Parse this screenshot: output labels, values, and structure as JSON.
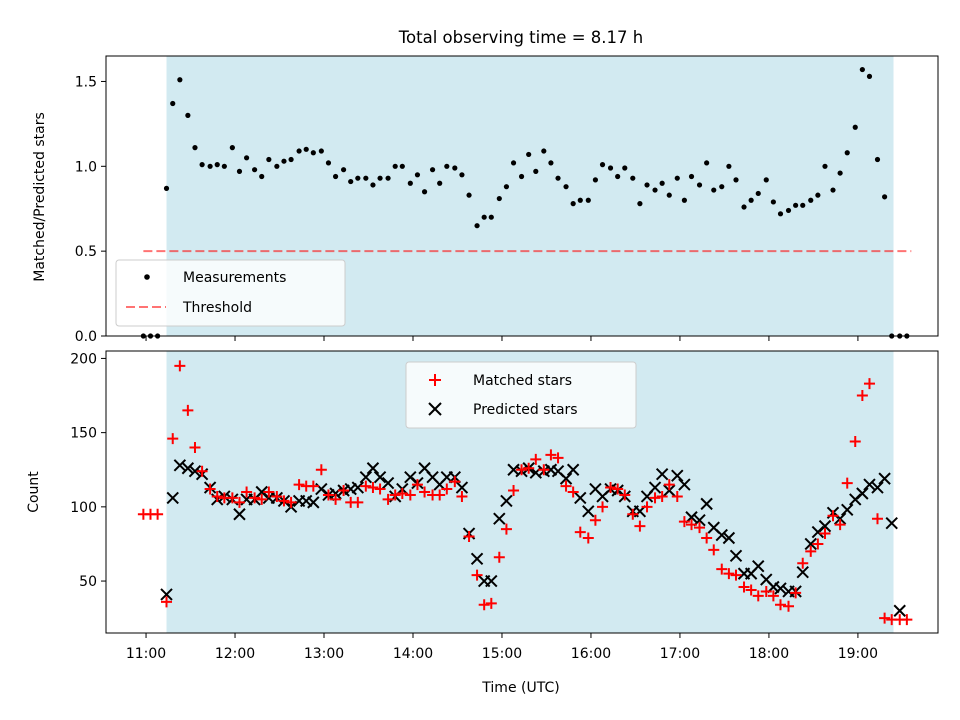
{
  "title": "Total observing time = 8.17 h",
  "x_axis": {
    "label": "Time (UTC)",
    "ticks": [
      "11:00",
      "12:00",
      "13:00",
      "14:00",
      "15:00",
      "16:00",
      "17:00",
      "18:00",
      "19:00"
    ],
    "tick_hours": [
      11,
      12,
      13,
      14,
      15,
      16,
      17,
      18,
      19
    ],
    "range_hours": [
      10.55,
      19.9
    ]
  },
  "observing_window_hours": [
    11.23,
    19.4
  ],
  "colors": {
    "window": "#add8e6",
    "measurements": "#000000",
    "threshold": "#ff0000",
    "matched": "#ff0000",
    "predicted": "#000000"
  },
  "chart_data": [
    {
      "type": "scatter",
      "ylabel": "Matched/Predicted stars",
      "ylim": [
        0,
        1.65
      ],
      "yticks": [
        0.0,
        0.5,
        1.0,
        1.5
      ],
      "yticklabels": [
        "0.0",
        "0.5",
        "1.0",
        "1.5"
      ],
      "legend_position": "lower-left",
      "legend": {
        "measurements": "Measurements",
        "threshold": "Threshold"
      },
      "threshold": {
        "value": 0.5,
        "x_range_hours": [
          10.97,
          19.6
        ]
      },
      "measurements": {
        "x": [
          10.97,
          11.05,
          11.13,
          11.23,
          11.3,
          11.38,
          11.47,
          11.55,
          11.63,
          11.72,
          11.8,
          11.88,
          11.97,
          12.05,
          12.13,
          12.22,
          12.3,
          12.38,
          12.47,
          12.55,
          12.63,
          12.72,
          12.8,
          12.88,
          12.97,
          13.05,
          13.13,
          13.22,
          13.3,
          13.38,
          13.47,
          13.55,
          13.63,
          13.72,
          13.8,
          13.88,
          13.97,
          14.05,
          14.13,
          14.22,
          14.3,
          14.38,
          14.47,
          14.55,
          14.63,
          14.72,
          14.8,
          14.88,
          14.97,
          15.05,
          15.13,
          15.22,
          15.3,
          15.38,
          15.47,
          15.55,
          15.63,
          15.72,
          15.8,
          15.88,
          15.97,
          16.05,
          16.13,
          16.22,
          16.3,
          16.38,
          16.47,
          16.55,
          16.63,
          16.72,
          16.8,
          16.88,
          16.97,
          17.05,
          17.13,
          17.22,
          17.3,
          17.38,
          17.47,
          17.55,
          17.63,
          17.72,
          17.8,
          17.88,
          17.97,
          18.05,
          18.13,
          18.22,
          18.3,
          18.38,
          18.47,
          18.55,
          18.63,
          18.72,
          18.8,
          18.88,
          18.97,
          19.05,
          19.13,
          19.22,
          19.3,
          19.38,
          19.47,
          19.55
        ],
        "y": [
          0.0,
          0.0,
          0.0,
          0.87,
          1.37,
          1.51,
          1.3,
          1.11,
          1.01,
          1.0,
          1.01,
          1.0,
          1.11,
          0.97,
          1.05,
          0.98,
          0.94,
          1.04,
          1.0,
          1.03,
          1.04,
          1.09,
          1.1,
          1.08,
          1.09,
          1.02,
          0.94,
          0.98,
          0.91,
          0.93,
          0.93,
          0.89,
          0.93,
          0.93,
          1.0,
          1.0,
          0.9,
          0.95,
          0.85,
          0.98,
          0.9,
          1.0,
          0.99,
          0.95,
          0.83,
          0.65,
          0.7,
          0.7,
          0.81,
          0.88,
          1.02,
          0.94,
          1.07,
          0.97,
          1.09,
          1.02,
          0.93,
          0.88,
          0.78,
          0.8,
          0.8,
          0.92,
          1.01,
          0.99,
          0.94,
          0.99,
          0.93,
          0.78,
          0.89,
          0.86,
          0.9,
          0.83,
          0.93,
          0.8,
          0.94,
          0.89,
          1.02,
          0.86,
          0.88,
          1.0,
          0.92,
          0.76,
          0.8,
          0.84,
          0.92,
          0.79,
          0.72,
          0.74,
          0.77,
          0.77,
          0.8,
          0.83,
          1.0,
          0.86,
          0.96,
          1.08,
          1.23,
          1.57,
          1.53,
          1.04,
          0.82,
          0.0,
          0.0,
          0.0
        ]
      }
    },
    {
      "type": "scatter",
      "ylabel": "Count",
      "ylim": [
        15,
        205
      ],
      "yticks": [
        50,
        100,
        150,
        200
      ],
      "yticklabels": [
        "50",
        "100",
        "150",
        "200"
      ],
      "legend_position": "upper-center",
      "series": [
        {
          "name": "Matched stars",
          "marker": "+",
          "x": [
            10.97,
            11.05,
            11.13,
            11.23,
            11.3,
            11.38,
            11.47,
            11.55,
            11.63,
            11.72,
            11.8,
            11.88,
            11.97,
            12.05,
            12.13,
            12.22,
            12.3,
            12.38,
            12.47,
            12.55,
            12.63,
            12.72,
            12.8,
            12.88,
            12.97,
            13.05,
            13.13,
            13.22,
            13.3,
            13.38,
            13.47,
            13.55,
            13.63,
            13.72,
            13.8,
            13.88,
            13.97,
            14.05,
            14.13,
            14.22,
            14.3,
            14.38,
            14.47,
            14.55,
            14.63,
            14.72,
            14.8,
            14.88,
            14.97,
            15.05,
            15.13,
            15.22,
            15.3,
            15.38,
            15.47,
            15.55,
            15.63,
            15.72,
            15.8,
            15.88,
            15.97,
            16.05,
            16.13,
            16.22,
            16.3,
            16.38,
            16.47,
            16.55,
            16.63,
            16.72,
            16.8,
            16.88,
            16.97,
            17.05,
            17.13,
            17.22,
            17.3,
            17.38,
            17.47,
            17.55,
            17.63,
            17.72,
            17.8,
            17.88,
            17.97,
            18.05,
            18.13,
            18.22,
            18.3,
            18.38,
            18.47,
            18.55,
            18.63,
            18.72,
            18.8,
            18.88,
            18.97,
            19.05,
            19.13,
            19.22,
            19.3,
            19.38,
            19.47,
            19.55
          ],
          "y": [
            95,
            95,
            95,
            36,
            146,
            195,
            165,
            140,
            124,
            112,
            107,
            106,
            106,
            103,
            110,
            106,
            105,
            110,
            107,
            104,
            103,
            115,
            114,
            114,
            125,
            108,
            105,
            111,
            103,
            103,
            114,
            113,
            112,
            105,
            108,
            109,
            108,
            115,
            110,
            108,
            108,
            112,
            117,
            107,
            80,
            54,
            34,
            35,
            66,
            85,
            111,
            125,
            126,
            132,
            125,
            135,
            133,
            114,
            110,
            83,
            79,
            91,
            100,
            113,
            112,
            108,
            95,
            87,
            100,
            106,
            107,
            115,
            107,
            90,
            88,
            86,
            79,
            71,
            58,
            55,
            54,
            46,
            44,
            40,
            43,
            40,
            34,
            33,
            42,
            62,
            70,
            75,
            82,
            94,
            88,
            116,
            144,
            175,
            183,
            92,
            25,
            24,
            24,
            24
          ]
        },
        {
          "name": "Predicted stars",
          "marker": "x",
          "x": [
            11.23,
            11.3,
            11.38,
            11.47,
            11.55,
            11.63,
            11.72,
            11.8,
            11.88,
            11.97,
            12.05,
            12.13,
            12.22,
            12.3,
            12.38,
            12.47,
            12.55,
            12.63,
            12.72,
            12.8,
            12.88,
            12.97,
            13.05,
            13.13,
            13.22,
            13.3,
            13.38,
            13.47,
            13.55,
            13.63,
            13.72,
            13.8,
            13.88,
            13.97,
            14.05,
            14.13,
            14.22,
            14.3,
            14.38,
            14.47,
            14.55,
            14.63,
            14.72,
            14.8,
            14.88,
            14.97,
            15.05,
            15.13,
            15.22,
            15.3,
            15.38,
            15.47,
            15.55,
            15.63,
            15.72,
            15.8,
            15.88,
            15.97,
            16.05,
            16.13,
            16.22,
            16.3,
            16.38,
            16.47,
            16.55,
            16.63,
            16.72,
            16.8,
            16.88,
            16.97,
            17.05,
            17.13,
            17.22,
            17.3,
            17.38,
            17.47,
            17.55,
            17.63,
            17.72,
            17.8,
            17.88,
            17.97,
            18.05,
            18.13,
            18.22,
            18.3,
            18.38,
            18.47,
            18.55,
            18.63,
            18.72,
            18.8,
            18.88,
            18.97,
            19.05,
            19.13,
            19.22,
            19.3,
            19.38,
            19.47
          ],
          "y": [
            41,
            106,
            128,
            126,
            124,
            122,
            113,
            105,
            107,
            105,
            95,
            105,
            105,
            110,
            106,
            106,
            104,
            100,
            104,
            104,
            103,
            112,
            108,
            109,
            111,
            112,
            113,
            120,
            126,
            120,
            116,
            107,
            112,
            120,
            116,
            126,
            120,
            115,
            120,
            120,
            113,
            82,
            65,
            50,
            50,
            92,
            104,
            125,
            124,
            126,
            123,
            124,
            125,
            124,
            119,
            125,
            106,
            97,
            112,
            107,
            112,
            111,
            107,
            97,
            97,
            107,
            113,
            122,
            111,
            121,
            115,
            93,
            91,
            102,
            86,
            81,
            79,
            67,
            55,
            55,
            60,
            51,
            46,
            45,
            43,
            43,
            56,
            75,
            83,
            87,
            96,
            92,
            98,
            105,
            109,
            115,
            113,
            119,
            89,
            30
          ]
        }
      ]
    }
  ]
}
